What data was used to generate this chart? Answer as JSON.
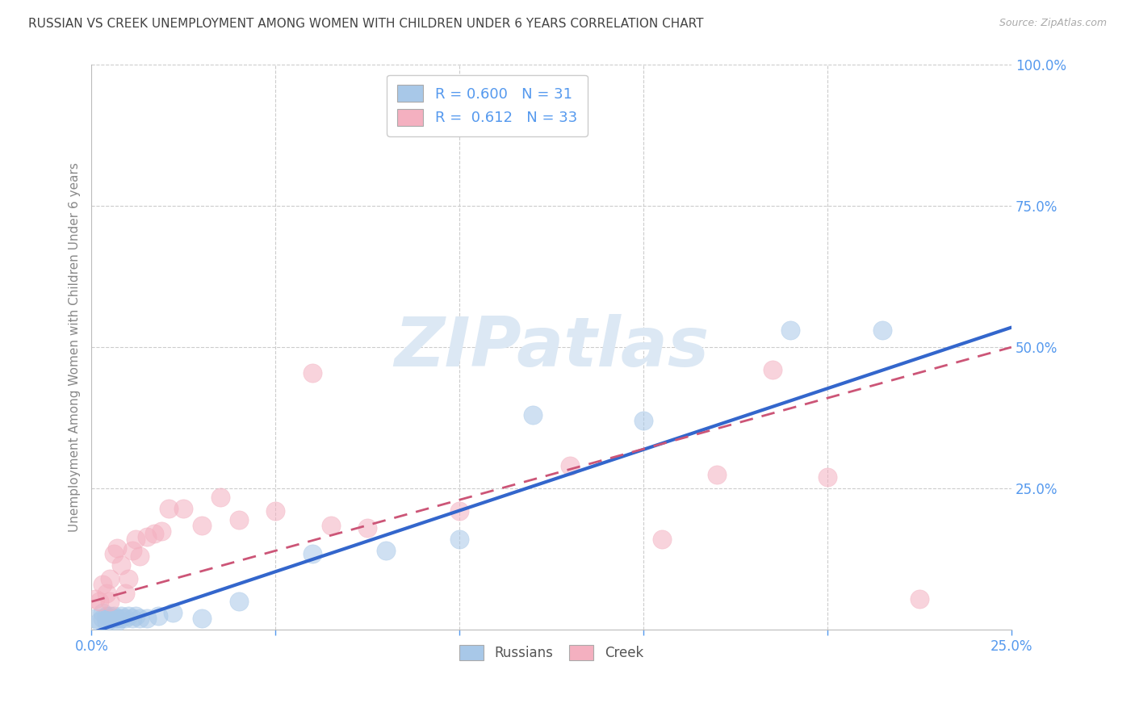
{
  "title": "RUSSIAN VS CREEK UNEMPLOYMENT AMONG WOMEN WITH CHILDREN UNDER 6 YEARS CORRELATION CHART",
  "source": "Source: ZipAtlas.com",
  "ylabel": "Unemployment Among Women with Children Under 6 years",
  "legend_bottom": [
    "Russians",
    "Creek"
  ],
  "russian_R": 0.6,
  "russian_N": 31,
  "creek_R": 0.612,
  "creek_N": 33,
  "xlim": [
    0,
    0.25
  ],
  "ylim": [
    0,
    1.0
  ],
  "blue_scatter_color": "#a8c8e8",
  "pink_scatter_color": "#f4b0c0",
  "blue_line_color": "#3366cc",
  "pink_line_color": "#cc5577",
  "watermark_color": "#dce8f4",
  "background_color": "#ffffff",
  "grid_color": "#cccccc",
  "title_color": "#444444",
  "tick_color": "#5599ee",
  "ylabel_color": "#888888",
  "russians_x": [
    0.001,
    0.002,
    0.003,
    0.003,
    0.004,
    0.004,
    0.005,
    0.005,
    0.006,
    0.006,
    0.007,
    0.007,
    0.008,
    0.008,
    0.009,
    0.01,
    0.011,
    0.012,
    0.013,
    0.015,
    0.018,
    0.022,
    0.03,
    0.04,
    0.06,
    0.08,
    0.1,
    0.12,
    0.15,
    0.19,
    0.215
  ],
  "russians_y": [
    0.02,
    0.015,
    0.03,
    0.02,
    0.025,
    0.015,
    0.02,
    0.025,
    0.02,
    0.025,
    0.015,
    0.02,
    0.02,
    0.025,
    0.02,
    0.025,
    0.02,
    0.025,
    0.02,
    0.02,
    0.025,
    0.03,
    0.02,
    0.05,
    0.135,
    0.14,
    0.16,
    0.38,
    0.37,
    0.53,
    0.53
  ],
  "creek_x": [
    0.001,
    0.002,
    0.003,
    0.004,
    0.005,
    0.005,
    0.006,
    0.007,
    0.008,
    0.009,
    0.01,
    0.011,
    0.012,
    0.013,
    0.015,
    0.017,
    0.019,
    0.021,
    0.025,
    0.03,
    0.035,
    0.04,
    0.05,
    0.06,
    0.065,
    0.075,
    0.1,
    0.13,
    0.155,
    0.17,
    0.185,
    0.2,
    0.225
  ],
  "creek_y": [
    0.055,
    0.05,
    0.08,
    0.065,
    0.09,
    0.05,
    0.135,
    0.145,
    0.115,
    0.065,
    0.09,
    0.14,
    0.16,
    0.13,
    0.165,
    0.17,
    0.175,
    0.215,
    0.215,
    0.185,
    0.235,
    0.195,
    0.21,
    0.455,
    0.185,
    0.18,
    0.21,
    0.29,
    0.16,
    0.275,
    0.46,
    0.27,
    0.055
  ],
  "blue_line_x0": 0.0,
  "blue_line_y0": -0.005,
  "blue_line_x1": 0.25,
  "blue_line_y1": 0.535,
  "pink_line_x0": 0.0,
  "pink_line_y0": 0.05,
  "pink_line_x1": 0.25,
  "pink_line_y1": 0.5
}
